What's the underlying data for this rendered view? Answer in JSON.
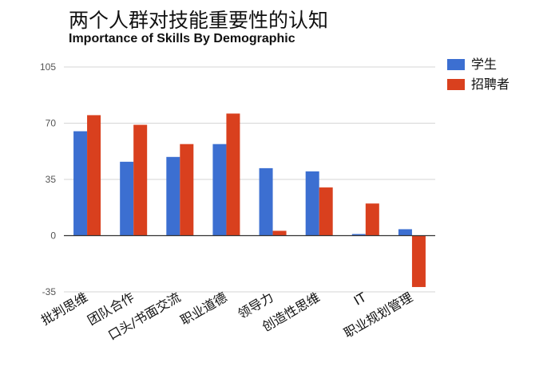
{
  "chart_data": {
    "type": "bar",
    "title": "两个人群对技能重要性的认知",
    "subtitle": "Importance of Skills By Demographic",
    "xlabel": "",
    "ylabel": "",
    "categories": [
      "批判思维",
      "团队合作",
      "口头/书面交流",
      "职业道德",
      "领导力",
      "创造性思维",
      "IT",
      "职业规划管理"
    ],
    "series": [
      {
        "name": "学生",
        "color": "#3c6fd1",
        "values": [
          65,
          46,
          49,
          57,
          42,
          40,
          1,
          4
        ]
      },
      {
        "name": "招聘者",
        "color": "#d9401e",
        "values": [
          75,
          69,
          57,
          76,
          3,
          30,
          20,
          -32
        ]
      }
    ],
    "ylim": [
      -35,
      105
    ],
    "yticks": [
      -35,
      0,
      35,
      70,
      105
    ],
    "grid": true,
    "legend": "right"
  }
}
